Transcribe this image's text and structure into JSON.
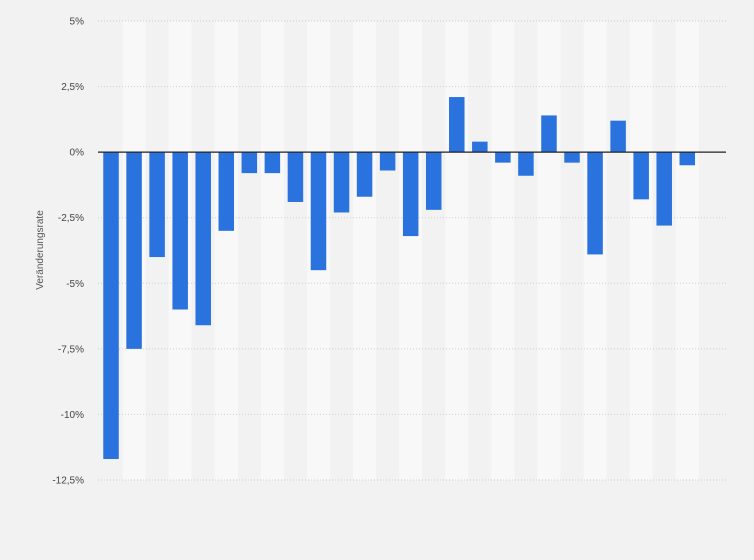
{
  "chart_data": {
    "type": "bar",
    "ylabel": "Veränderungsrate",
    "xlabel": "",
    "ylim": [
      -12.5,
      5
    ],
    "yticks": [
      5,
      2.5,
      0,
      -2.5,
      -5,
      -7.5,
      -10,
      -12.5
    ],
    "ytick_labels": [
      "5%",
      "2,5%",
      "0%",
      "-2,5%",
      "-5%",
      "-7,5%",
      "-10%",
      "-12,5%"
    ],
    "grid": true,
    "values": [
      -11.7,
      -7.5,
      -4.0,
      -6.0,
      -6.6,
      -3.0,
      -0.8,
      -0.8,
      -1.9,
      -4.5,
      -2.3,
      -1.7,
      -0.7,
      -3.2,
      -2.2,
      2.1,
      0.4,
      -0.4,
      -0.9,
      1.4,
      -0.4,
      -3.9,
      1.2,
      -1.8,
      -2.8,
      -0.5
    ],
    "bar_color": "#2a72de",
    "background_color": "#f2f2f2",
    "stripe_color": "#f8f8f8",
    "zero_line_color": "#222222"
  }
}
